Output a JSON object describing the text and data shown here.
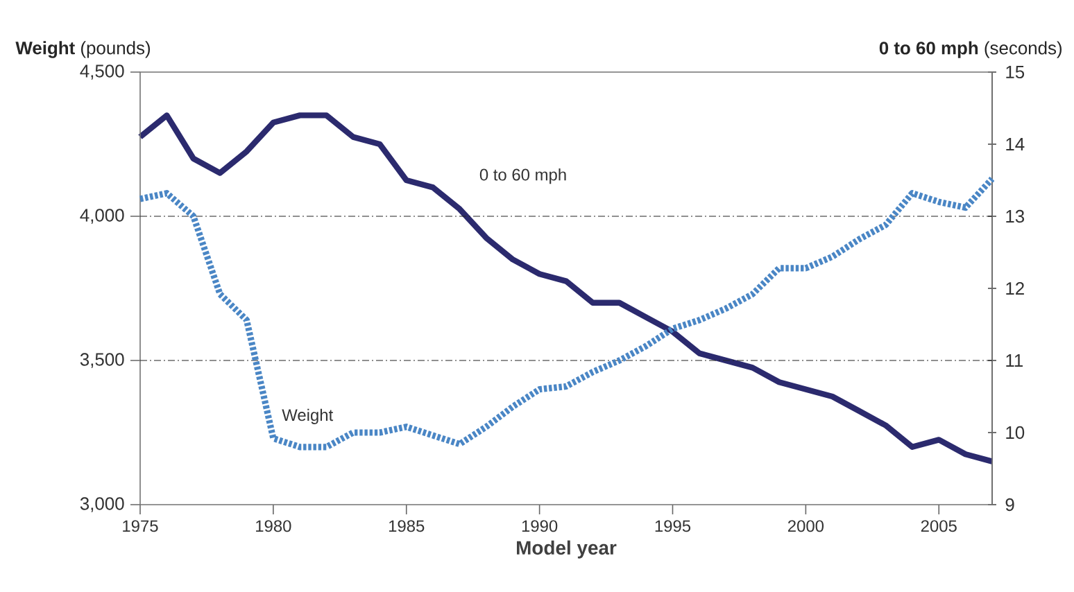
{
  "chart_data": {
    "type": "line",
    "xlabel": "Model year",
    "ylabel": "**Weight** (pounds)",
    "y2label": "**0 to 60 mph** (seconds)",
    "x": [
      1975,
      1976,
      1977,
      1978,
      1979,
      1980,
      1981,
      1982,
      1983,
      1984,
      1985,
      1986,
      1987,
      1988,
      1989,
      1990,
      1991,
      1992,
      1993,
      1994,
      1995,
      1996,
      1997,
      1998,
      1999,
      2000,
      2001,
      2002,
      2003,
      2004,
      2005,
      2006,
      2007
    ],
    "series": [
      {
        "name": "0 to 60 mph",
        "color": "#2b2a6e",
        "axis": "y2",
        "line_style": "solid",
        "values": [
          14.1,
          14.4,
          13.8,
          13.6,
          13.9,
          14.3,
          14.4,
          14.4,
          14.1,
          14.0,
          13.5,
          13.4,
          13.1,
          12.7,
          12.4,
          12.2,
          12.1,
          11.8,
          11.8,
          11.6,
          11.4,
          11.1,
          11.0,
          10.9,
          10.7,
          10.6,
          10.5,
          10.3,
          10.1,
          9.8,
          9.9,
          9.7,
          9.6
        ]
      },
      {
        "name": "Weight",
        "color": "#4a86c5",
        "line_style": "dotted",
        "values": [
          4060,
          4080,
          4000,
          3730,
          3640,
          3230,
          3200,
          3200,
          3250,
          3250,
          3270,
          3240,
          3210,
          3270,
          3340,
          3400,
          3410,
          3460,
          3500,
          3550,
          3610,
          3640,
          3680,
          3730,
          3820,
          3820,
          3860,
          3920,
          3970,
          4080,
          4050,
          4030,
          4130
        ]
      }
    ],
    "xlim": [
      1975,
      2007
    ],
    "xticks": [
      1975,
      1980,
      1985,
      1990,
      1995,
      2000,
      2005
    ],
    "ylim": [
      3000,
      4500
    ],
    "yticks": [
      {
        "value": 3000,
        "label": "3,000"
      },
      {
        "value": 3500,
        "label": "3,500"
      },
      {
        "value": 4000,
        "label": "4,000"
      },
      {
        "value": 4500,
        "label": "4,500"
      }
    ],
    "y2lim": [
      9,
      15
    ],
    "y2ticks": [
      9,
      10,
      11,
      12,
      13,
      14,
      15
    ],
    "ref_lines": [
      {
        "axis": "y",
        "value": 4000,
        "line_style": "dashed",
        "color": "#222222"
      },
      {
        "axis": "y",
        "value": 3500,
        "line_style": "dashed",
        "color": "#222222"
      }
    ]
  }
}
